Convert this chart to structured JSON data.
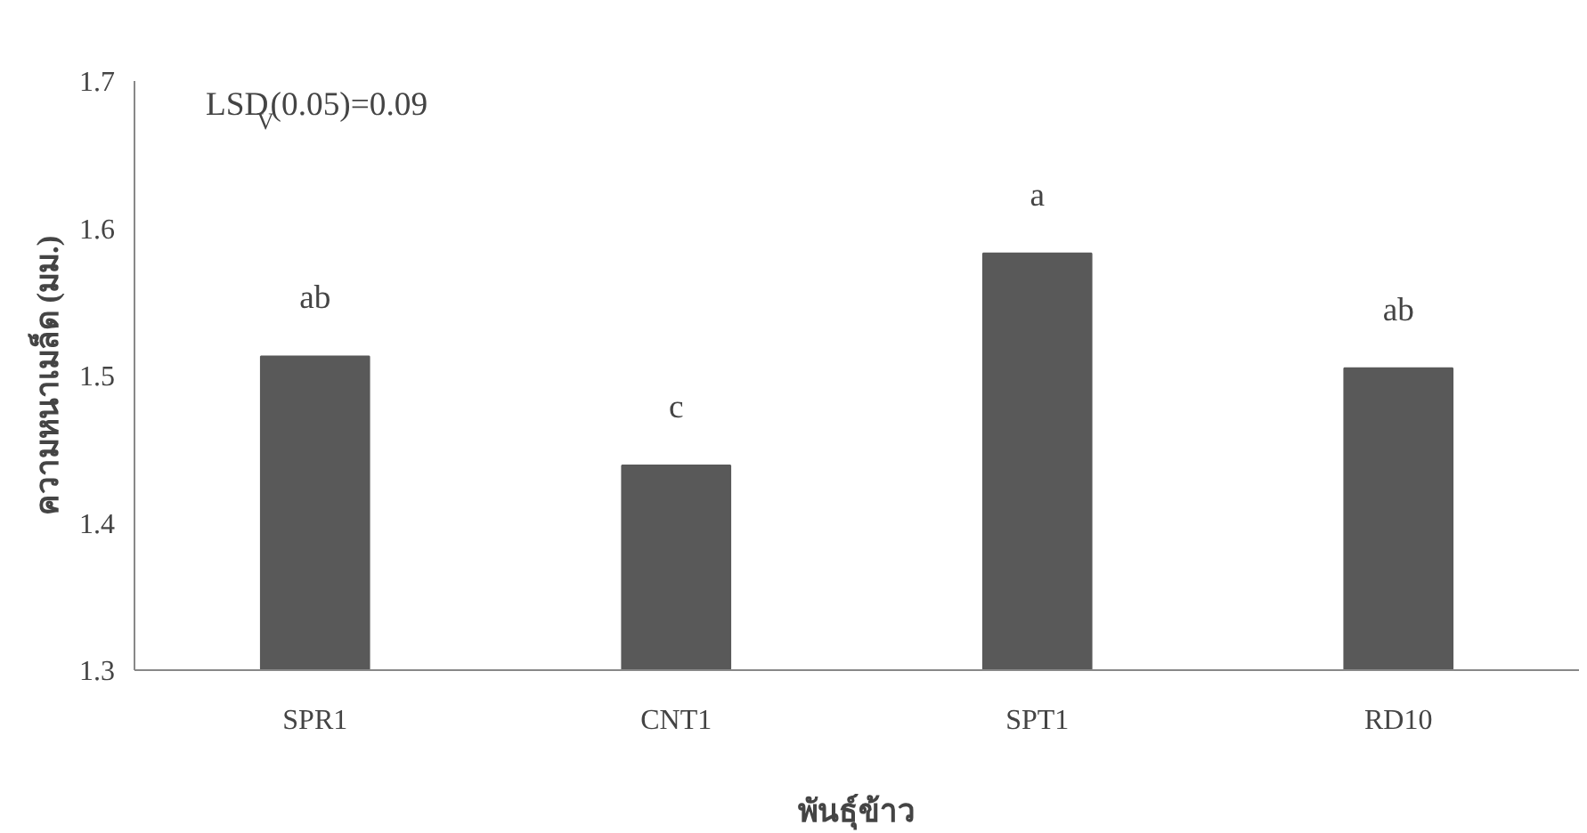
{
  "chart_data": {
    "type": "bar",
    "xlabel": "พันธุ์ข้าว",
    "ylabel": "ความหนาเมล็ด (มม.)",
    "categories": [
      "SPR1",
      "CNT1",
      "SPT1",
      "RD10"
    ],
    "values": [
      1.513,
      1.439,
      1.583,
      1.505
    ],
    "color": "#595959",
    "ylim": [
      1.3,
      1.7
    ],
    "yticks": [
      1.3,
      1.4,
      1.5,
      1.6,
      1.7
    ],
    "grid": false,
    "annotations": [
      "LSD$_{V}$(0.05)=0.09",
      "ab",
      "c",
      "a",
      "ab"
    ]
  }
}
